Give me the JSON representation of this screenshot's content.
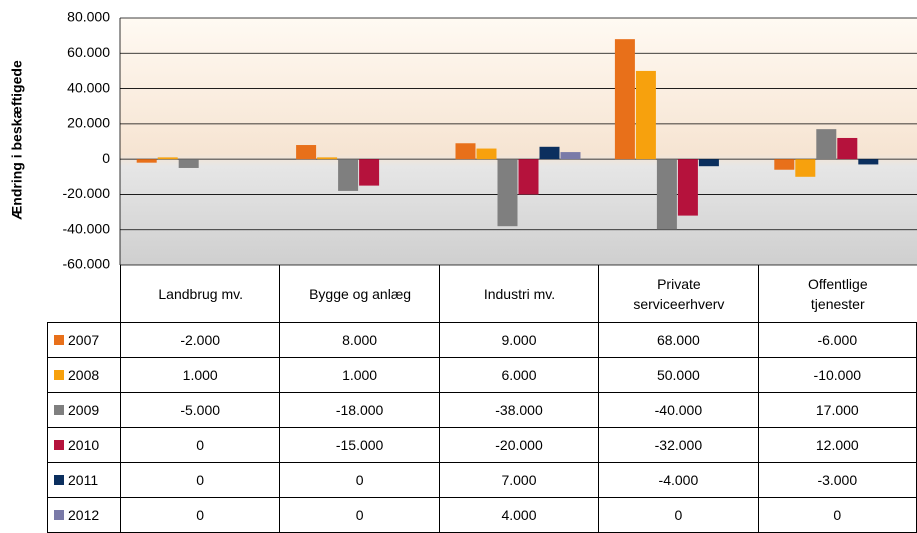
{
  "chart_data": {
    "type": "bar",
    "y_label": "Ændring i beskæftigede",
    "categories": [
      "Landbrug mv.",
      "Bygge og anlæg",
      "Industri mv.",
      "Private serviceerhverv",
      "Offentlige tjenester"
    ],
    "series": [
      {
        "name": "2007",
        "color": "#e8701a",
        "values": [
          -2000,
          8000,
          9000,
          68000,
          -6000
        ],
        "value_labels": [
          "-2.000",
          "8.000",
          "9.000",
          "68.000",
          "-6.000"
        ]
      },
      {
        "name": "2008",
        "color": "#f7a10d",
        "values": [
          1000,
          1000,
          6000,
          50000,
          -10000
        ],
        "value_labels": [
          "1.000",
          "1.000",
          "6.000",
          "50.000",
          "-10.000"
        ]
      },
      {
        "name": "2009",
        "color": "#7f7f7f",
        "values": [
          -5000,
          -18000,
          -38000,
          -40000,
          17000
        ],
        "value_labels": [
          "-5.000",
          "-18.000",
          "-38.000",
          "-40.000",
          "17.000"
        ]
      },
      {
        "name": "2010",
        "color": "#b5123c",
        "values": [
          0,
          -15000,
          -20000,
          -32000,
          12000
        ],
        "value_labels": [
          "0",
          "-15.000",
          "-20.000",
          "-32.000",
          "12.000"
        ]
      },
      {
        "name": "2011",
        "color": "#0b2f5e",
        "values": [
          0,
          0,
          7000,
          -4000,
          -3000
        ],
        "value_labels": [
          "0",
          "0",
          "7.000",
          "-4.000",
          "-3.000"
        ]
      },
      {
        "name": "2012",
        "color": "#7a7aa8",
        "values": [
          0,
          0,
          4000,
          0,
          0
        ],
        "value_labels": [
          "0",
          "0",
          "4.000",
          "0",
          "0"
        ]
      }
    ],
    "ylim": [
      -60000,
      80000
    ],
    "yticks": [
      {
        "value": -60000,
        "label": "-60.000"
      },
      {
        "value": -40000,
        "label": "-40.000"
      },
      {
        "value": -20000,
        "label": "-20.000"
      },
      0,
      {
        "value": 20000,
        "label": "20.000"
      },
      {
        "value": 40000,
        "label": "40.000"
      },
      {
        "value": 60000,
        "label": "60.000"
      },
      {
        "value": 80000,
        "label": "80.000"
      }
    ],
    "grid": true
  }
}
